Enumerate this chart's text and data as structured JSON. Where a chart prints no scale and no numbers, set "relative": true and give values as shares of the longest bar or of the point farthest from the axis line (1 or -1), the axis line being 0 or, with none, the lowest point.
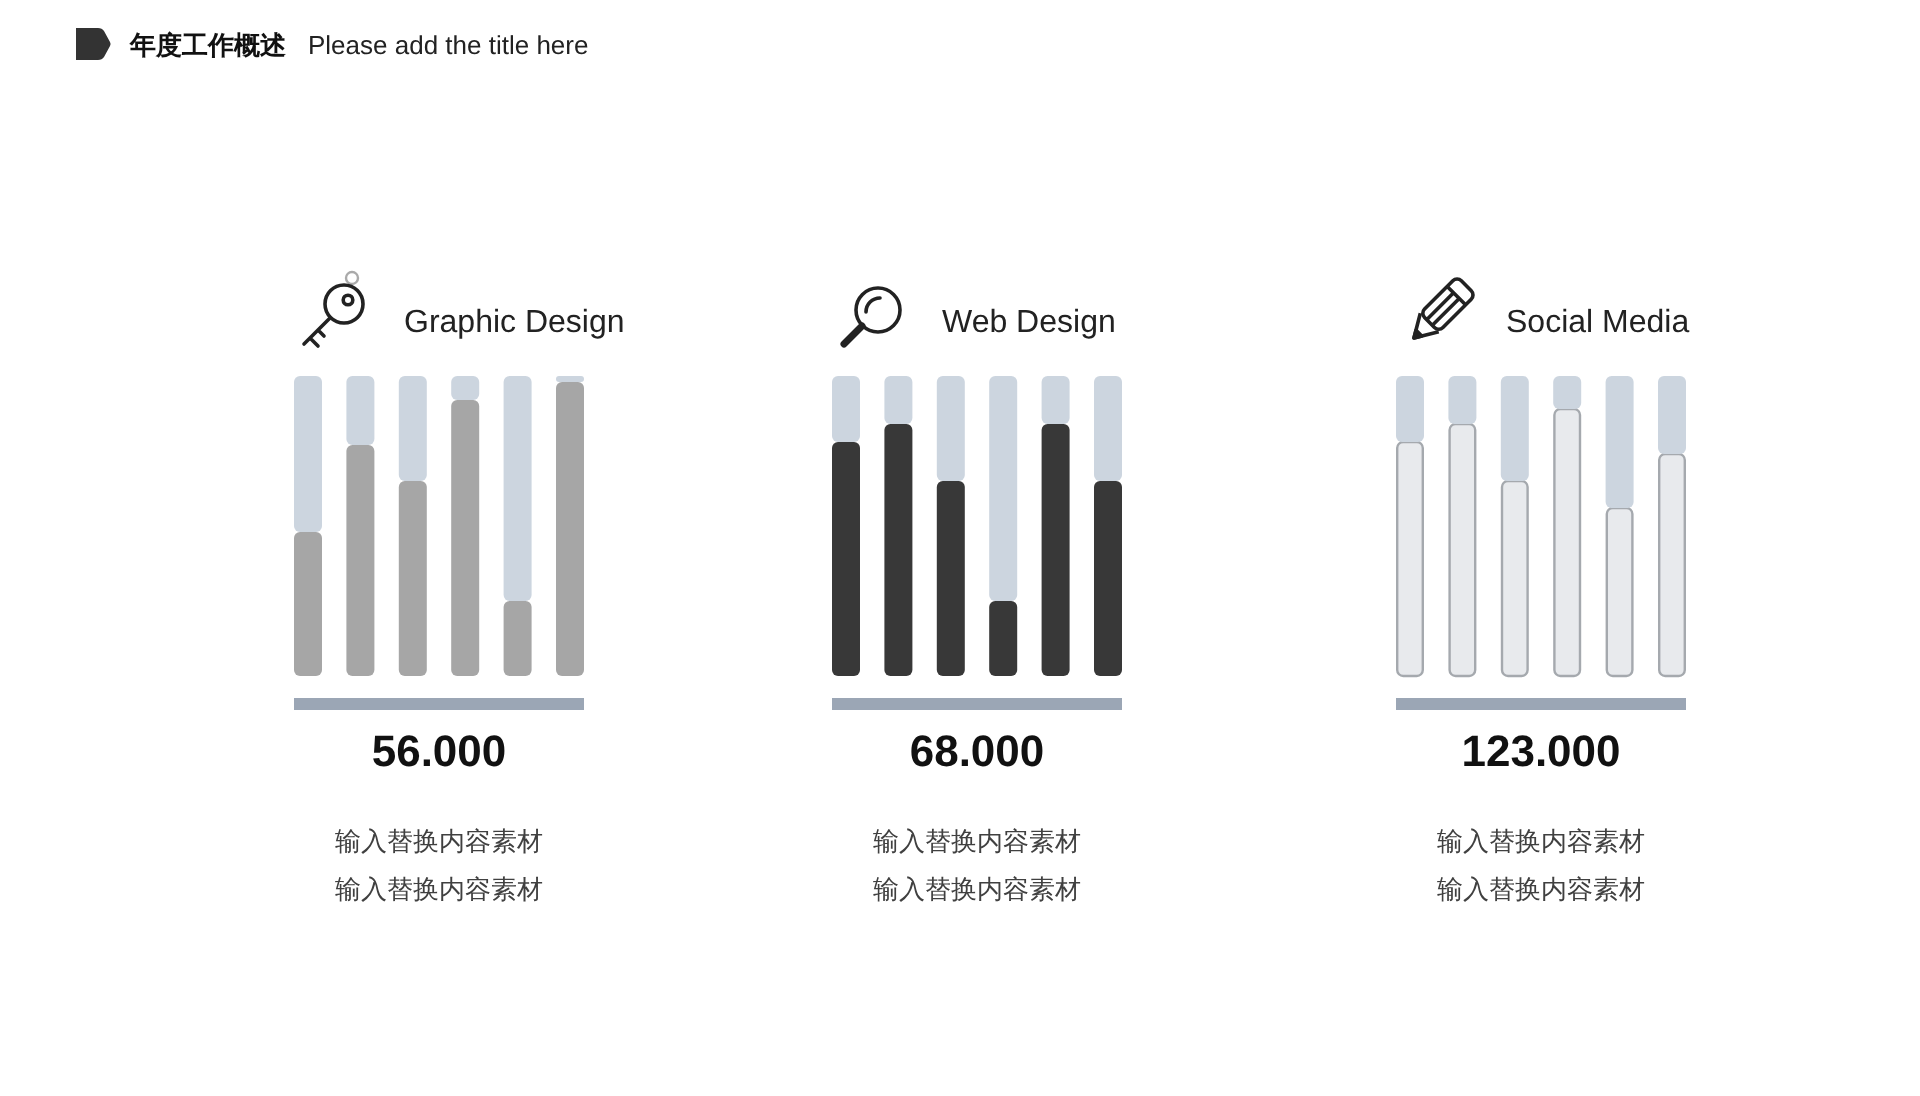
{
  "chart_data": [
    {
      "type": "other",
      "title": "年度工作概述",
      "subtitle": "Please add the title here"
    },
    {
      "type": "bar",
      "title": "Graphic Design",
      "relative": true,
      "stacked": true,
      "categories": [
        null,
        null,
        null,
        null,
        null,
        null
      ],
      "series": [
        {
          "color": "#a6a6a6",
          "values": [
            0.48,
            0.77,
            0.65,
            0.92,
            0.25,
            0.98
          ]
        },
        {
          "color": "#ccd5df",
          "values": [
            0.52,
            0.23,
            0.35,
            0.08,
            0.75,
            0.02
          ]
        }
      ],
      "annotations": [
        "56.000",
        "输入替换内容素材",
        "输入替换内容素材"
      ]
    },
    {
      "type": "bar",
      "title": "Web Design",
      "relative": true,
      "stacked": true,
      "categories": [
        null,
        null,
        null,
        null,
        null,
        null
      ],
      "series": [
        {
          "color": "#383838",
          "values": [
            0.78,
            0.84,
            0.65,
            0.25,
            0.84,
            0.65
          ]
        },
        {
          "color": "#ccd5df",
          "values": [
            0.22,
            0.16,
            0.35,
            0.75,
            0.16,
            0.35
          ]
        }
      ],
      "annotations": [
        "68.000",
        "输入替换内容素材",
        "输入替换内容素材"
      ]
    },
    {
      "type": "bar",
      "title": "Social Media",
      "relative": true,
      "stacked": true,
      "categories": [
        null,
        null,
        null,
        null,
        null,
        null
      ],
      "series": [
        {
          "color": "#e8eaed",
          "values": [
            0.78,
            0.84,
            0.65,
            0.89,
            0.56,
            0.74
          ]
        },
        {
          "color": "#ccd5df",
          "values": [
            0.22,
            0.16,
            0.35,
            0.11,
            0.44,
            0.26
          ]
        }
      ],
      "annotations": [
        "123.000",
        "输入替换内容素材",
        "输入替换内容素材"
      ]
    }
  ]
}
